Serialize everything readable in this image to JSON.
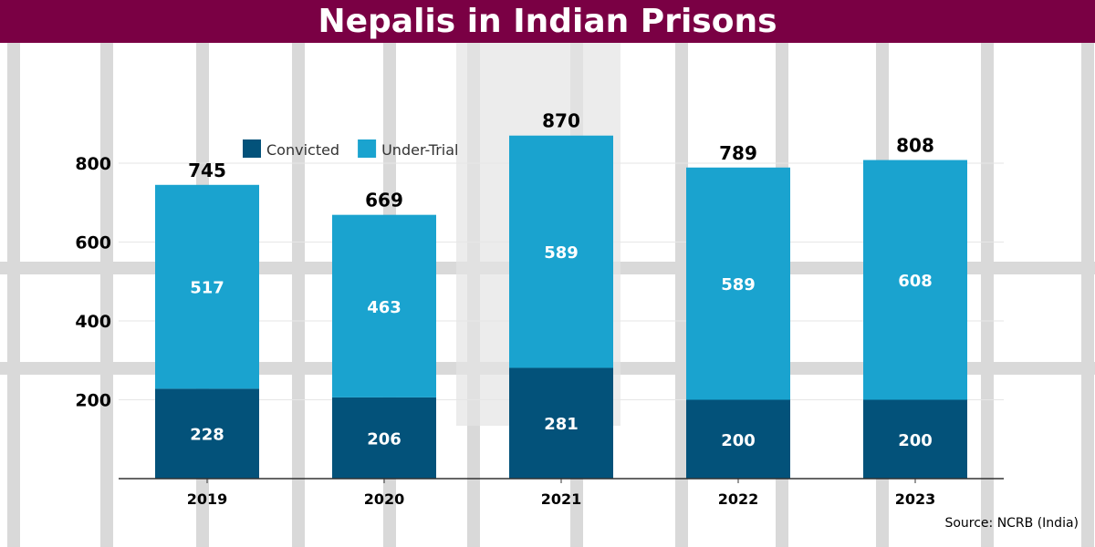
{
  "chart_data": {
    "type": "bar",
    "stacked": true,
    "title": "Nepalis in Indian Prisons",
    "categories": [
      "2019",
      "2020",
      "2021",
      "2022",
      "2023"
    ],
    "series": [
      {
        "name": "Convicted",
        "values": [
          228,
          206,
          281,
          200,
          200
        ],
        "color": "#03527a"
      },
      {
        "name": "Under-Trial",
        "values": [
          517,
          463,
          589,
          589,
          608
        ],
        "color": "#1aa3cf"
      }
    ],
    "totals": [
      745,
      669,
      870,
      789,
      808
    ],
    "ylim": [
      0,
      800
    ],
    "yticks": [
      "200",
      "400",
      "600",
      "800"
    ],
    "grid": true,
    "legend": "top",
    "source": "Source: NCRB (India)"
  }
}
